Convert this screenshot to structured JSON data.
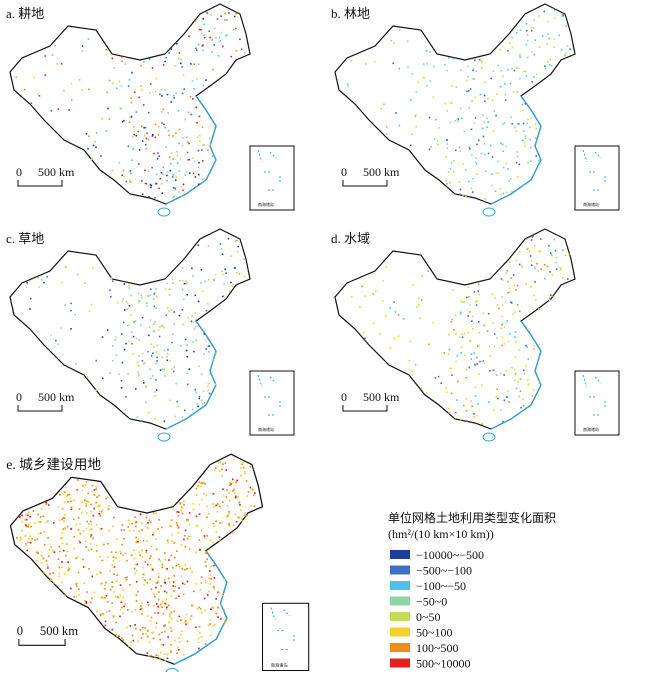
{
  "panels": [
    {
      "label": "a. 耕地",
      "scale": [
        "0",
        "500 km"
      ],
      "inset_label": "南海诸岛"
    },
    {
      "label": "b. 林地",
      "scale": [
        "0",
        "500 km"
      ],
      "inset_label": "南海诸岛"
    },
    {
      "label": "c. 草地",
      "scale": [
        "0",
        "500 km"
      ],
      "inset_label": "南海诸岛"
    },
    {
      "label": "d. 水域",
      "scale": [
        "0",
        "500 km"
      ],
      "inset_label": "南海诸岛"
    },
    {
      "label": "e. 城乡建设用地",
      "scale": [
        "0",
        "500 km"
      ],
      "inset_label": "南海诸岛"
    }
  ],
  "legend": {
    "title": "单位网格土地利用类型变化面积",
    "unit": "(hm²/(10 km×10 km))",
    "items": [
      {
        "label": "−10000~−500",
        "color": "#1d3f9b"
      },
      {
        "label": "−500~−100",
        "color": "#3d6fc2"
      },
      {
        "label": "−100~−50",
        "color": "#4cc3ea"
      },
      {
        "label": "−50~0",
        "color": "#8fd3a6"
      },
      {
        "label": "0~50",
        "color": "#c5dc5a"
      },
      {
        "label": "50~100",
        "color": "#f2d12a"
      },
      {
        "label": "100~500",
        "color": "#f08a1c"
      },
      {
        "label": "500~10000",
        "color": "#e3211f"
      }
    ]
  }
}
